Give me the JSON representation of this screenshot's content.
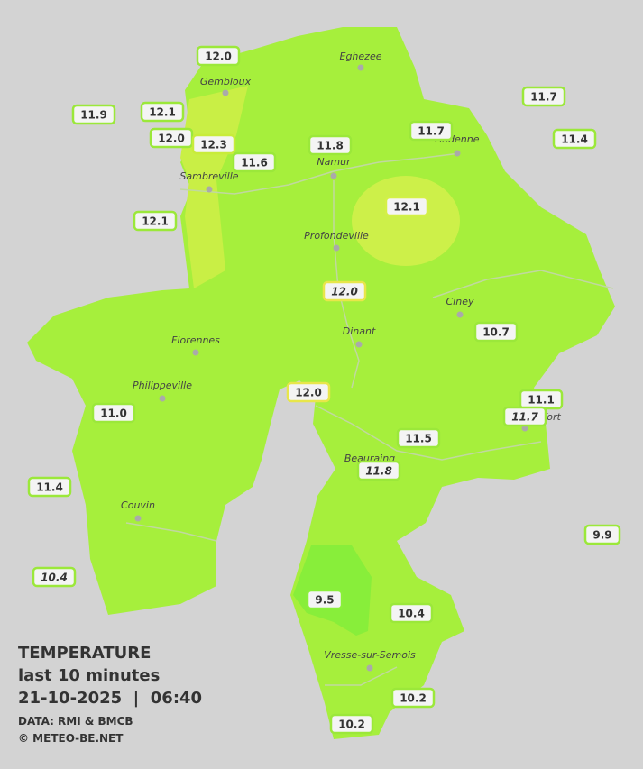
{
  "legend": {
    "title": "TEMPERATURE",
    "subtitle": "last 10 minutes",
    "datetime": "21-10-2025  |  06:40",
    "source": "DATA: RMI & BMCB",
    "credit": "© METEO-BE.NET"
  },
  "towns": [
    "Eghezee",
    "Gembloux",
    "Andenne",
    "Namur",
    "Sambreville",
    "Profondeville",
    "Ciney",
    "Dinant",
    "Florennes",
    "Philippeville",
    "Rochefort",
    "Beauraing",
    "Couvin",
    "Vresse-sur-Semois"
  ],
  "stations": [
    {
      "label": "12.0",
      "outline": "#9be83a"
    },
    {
      "label": "12.1",
      "outline": "#9be83a"
    },
    {
      "label": "11.9",
      "outline": "#9be83a"
    },
    {
      "label": "12.0",
      "outline": "#9be83a"
    },
    {
      "label": "12.3",
      "outline": "#c8ec3a"
    },
    {
      "label": "11.6",
      "outline": "#9be83a"
    },
    {
      "label": "11.8",
      "outline": "#9be83a"
    },
    {
      "label": "11.7",
      "outline": "#9be83a"
    },
    {
      "label": "11.7",
      "outline": "#9be83a"
    },
    {
      "label": "11.4",
      "outline": "#9be83a"
    },
    {
      "label": "12.1",
      "outline": "#9be83a"
    },
    {
      "label": "12.1",
      "outline": "#d4f046"
    },
    {
      "label": "12.0",
      "outline": "#e8e64a",
      "italic": true
    },
    {
      "label": "10.7",
      "outline": "#9be83a"
    },
    {
      "label": "12.0",
      "outline": "#e8e64a"
    },
    {
      "label": "11.1",
      "outline": "#9be83a"
    },
    {
      "label": "11.7",
      "outline": "#9be83a",
      "italic": true
    },
    {
      "label": "11.0",
      "outline": "#9be83a"
    },
    {
      "label": "11.5",
      "outline": "#9be83a"
    },
    {
      "label": "11.8",
      "outline": "#9be83a",
      "italic": true
    },
    {
      "label": "11.4",
      "outline": "#9be83a"
    },
    {
      "label": "9.9",
      "outline": "#9be83a"
    },
    {
      "label": "10.4",
      "outline": "#9be83a",
      "italic": true
    },
    {
      "label": "9.5",
      "outline": "#8af03a"
    },
    {
      "label": "10.4",
      "outline": "#9be83a"
    },
    {
      "label": "10.2",
      "outline": "#9be83a"
    },
    {
      "label": "10.2",
      "outline": "#9be83a"
    }
  ]
}
